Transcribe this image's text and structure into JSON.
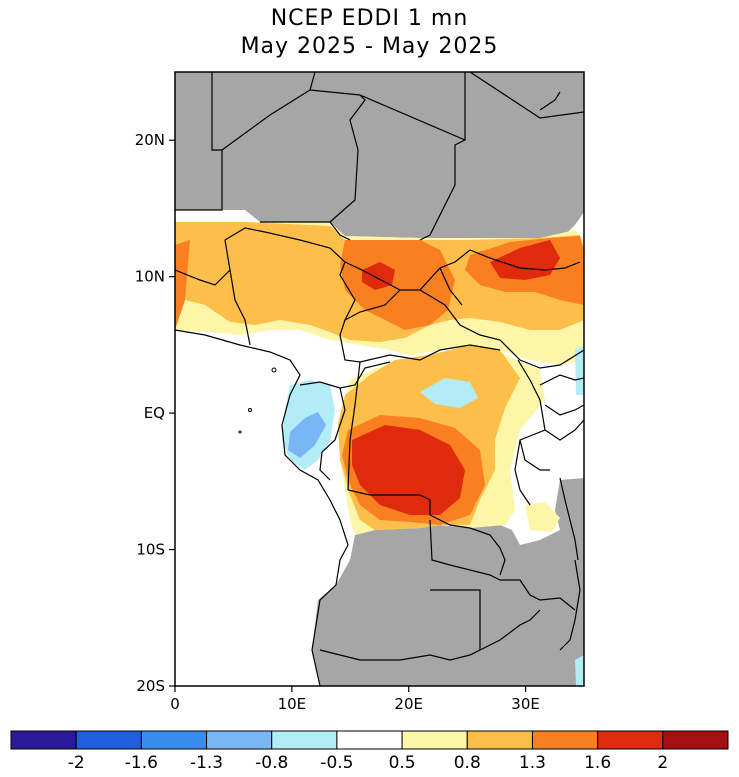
{
  "title_line1": "NCEP EDDI 1 mn",
  "title_line2": "May 2025 - May 2025",
  "map": {
    "lon_range": [
      0,
      35
    ],
    "lat_range": [
      -20,
      25
    ],
    "y_ticks": [
      {
        "lat": 20,
        "label": "20N"
      },
      {
        "lat": 10,
        "label": "10N"
      },
      {
        "lat": 0,
        "label": "EQ"
      },
      {
        "lat": -10,
        "label": "10S"
      },
      {
        "lat": -20,
        "label": "20S"
      }
    ],
    "x_ticks": [
      {
        "lon": 0,
        "label": "0"
      },
      {
        "lon": 10,
        "label": "10E"
      },
      {
        "lon": 20,
        "label": "20E"
      },
      {
        "lon": 30,
        "label": "30E"
      }
    ],
    "no_data_color": "#a6a6a6",
    "border_color": "#000000"
  },
  "colorbar": {
    "colors": [
      "#2a1a9a",
      "#1e5fe0",
      "#3a8df0",
      "#7ab6f5",
      "#b2ecf7",
      "#ffffff",
      "#fdf6a8",
      "#fdbf4a",
      "#f97f20",
      "#e02a0c",
      "#a50f0f"
    ],
    "labels": [
      "-2",
      "-1.6",
      "-1.3",
      "-0.8",
      "-0.5",
      "0.5",
      "0.8",
      "1.3",
      "1.6",
      "2"
    ]
  }
}
